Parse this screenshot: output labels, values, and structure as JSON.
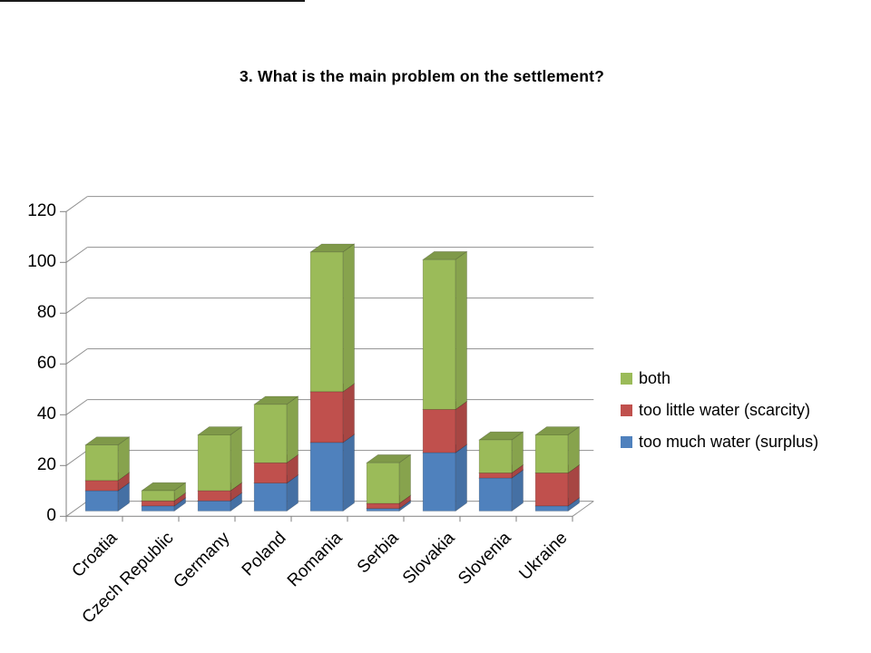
{
  "title": "3. What is the main problem on the settlement?",
  "chart_data": {
    "type": "bar",
    "variant": "3d-stacked-column",
    "title": "3. What is the main problem on the settlement?",
    "categories": [
      "Croatia",
      "Czech Republic",
      "Germany",
      "Poland",
      "Romania",
      "Serbia",
      "Slovakia",
      "Slovenia",
      "Ukraine"
    ],
    "series": [
      {
        "name": "too much water (surplus)",
        "color": "#4F81BD",
        "values": [
          8,
          2,
          4,
          11,
          27,
          1,
          23,
          13,
          2
        ]
      },
      {
        "name": "too little water (scarcity)",
        "color": "#C0504D",
        "values": [
          4,
          2,
          4,
          8,
          20,
          2,
          17,
          2,
          13
        ]
      },
      {
        "name": "both",
        "color": "#9BBB59",
        "values": [
          14,
          4,
          22,
          23,
          55,
          16,
          59,
          13,
          15
        ]
      }
    ],
    "stack_order": "first series at bottom",
    "ylim": [
      0,
      120
    ],
    "yticks": [
      0,
      20,
      40,
      60,
      80,
      100,
      120
    ],
    "grid": true,
    "legend_position": "right"
  },
  "axes": {
    "y_tick_labels": [
      "0",
      "20",
      "40",
      "60",
      "80",
      "100",
      "120"
    ]
  },
  "legend": {
    "items": [
      {
        "label": "both",
        "color": "#9BBB59"
      },
      {
        "label": "too little water (scarcity)",
        "color": "#C0504D"
      },
      {
        "label": "too much water (surplus)",
        "color": "#4F81BD"
      }
    ]
  },
  "style": {
    "grid_color": "#909090",
    "axis_color": "#808080",
    "background": "#FFFFFF",
    "text_color": "#000000"
  }
}
